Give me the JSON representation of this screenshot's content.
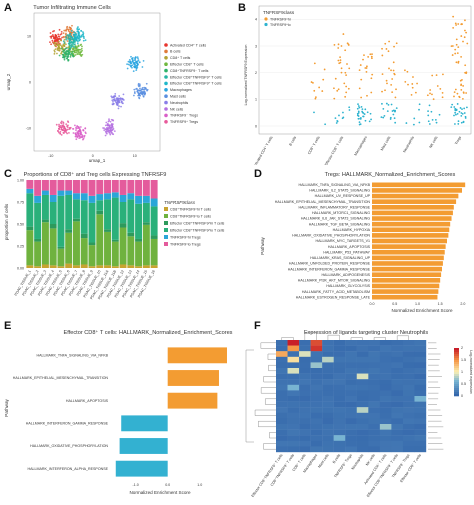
{
  "panels": {
    "A": {
      "label": "A"
    },
    "B": {
      "label": "B"
    },
    "C": {
      "label": "C"
    },
    "D": {
      "label": "D"
    },
    "E": {
      "label": "E"
    },
    "F": {
      "label": "F"
    }
  },
  "chart_data": [
    {
      "id": "A",
      "type": "scatter",
      "title": "Tumor Infiltrating Immune Cells",
      "xlabel": "umap_1",
      "ylabel": "umap_2",
      "xticks": [
        "-10",
        "0",
        "10"
      ],
      "yticks": [
        "10",
        "0",
        "-10"
      ],
      "xlim": [
        -14,
        16
      ],
      "ylim": [
        -15,
        15
      ],
      "legend_position": "right",
      "legend": [
        {
          "name": "Activated CD4⁺ T cells",
          "color": "#e8352d"
        },
        {
          "name": "B cells",
          "color": "#e07b39"
        },
        {
          "name": "CD8⁺ T cells",
          "color": "#b3a334"
        },
        {
          "name": "Effector CD8⁺ T cells",
          "color": "#70b83e"
        },
        {
          "name": "CD8⁺TNFRSF9⁻ T cells",
          "color": "#2fb268"
        },
        {
          "name": "Effector CD8⁺TNFRSF9⁺ T cells",
          "color": "#27b5a4"
        },
        {
          "name": "Effector CD8⁺TNFRSF9⁺ T cells",
          "color": "#1fb7c9"
        },
        {
          "name": "Macrophages",
          "color": "#2ba6e0"
        },
        {
          "name": "Mast cells",
          "color": "#5a8fe0"
        },
        {
          "name": "Neutrophils",
          "color": "#8a7ee8"
        },
        {
          "name": "NK cells",
          "color": "#b470e0"
        },
        {
          "name": "TNFRSF9⁻ Tregs",
          "color": "#d95fc8"
        },
        {
          "name": "TNFRSF9⁺ Tregs",
          "color": "#e85a9b"
        }
      ],
      "clusters": [
        {
          "x": -8.5,
          "y": 9.5,
          "color": "#e8352d"
        },
        {
          "x": -5.5,
          "y": 10.5,
          "color": "#e07b39"
        },
        {
          "x": -7.5,
          "y": 7.5,
          "color": "#b3a334"
        },
        {
          "x": -4,
          "y": 7,
          "color": "#70b83e"
        },
        {
          "x": -6,
          "y": 6,
          "color": "#2fb268"
        },
        {
          "x": -5,
          "y": 9,
          "color": "#27b5a4"
        },
        {
          "x": -3.5,
          "y": 10,
          "color": "#1fb7c9"
        },
        {
          "x": 10,
          "y": 4,
          "color": "#2ba6e0"
        },
        {
          "x": 11.5,
          "y": -2,
          "color": "#5a8fe0"
        },
        {
          "x": 6,
          "y": -4,
          "color": "#8a7ee8"
        },
        {
          "x": 4,
          "y": -10,
          "color": "#b470e0"
        },
        {
          "x": -3,
          "y": -11,
          "color": "#d95fc8"
        },
        {
          "x": -7,
          "y": -10,
          "color": "#e85a9b"
        }
      ]
    },
    {
      "id": "B",
      "type": "scatter",
      "ylabel": "Log-normalized TNFRSF9 Expression",
      "yticks": [
        "0",
        "1",
        "2",
        "3",
        "4"
      ],
      "ylim": [
        -0.3,
        4.5
      ],
      "legend_title": "TNFRSF9class",
      "legend_position": "top-left",
      "series": [
        {
          "name": "TNFRSF9^hi",
          "color": "#f39c32"
        },
        {
          "name": "TNFRSF9^lo",
          "color": "#2eb3cf"
        }
      ],
      "categories": [
        "Activated CD4⁺ T cells",
        "B cells",
        "CD8⁺ T cells",
        "Effector CD8⁺ T cells",
        "Macrophages",
        "Mast cells",
        "Neutrophils",
        "NK cells",
        "Tregs"
      ],
      "hi_range": [
        [
          0,
          0
        ],
        [
          0,
          0
        ],
        [
          1.0,
          2.5
        ],
        [
          1.0,
          3.5
        ],
        [
          1.0,
          2.8
        ],
        [
          1.0,
          3.3
        ],
        [
          1.0,
          2.2
        ],
        [
          1.0,
          2.4
        ],
        [
          1.0,
          4.1
        ]
      ],
      "hi_density": [
        0,
        0,
        10,
        30,
        20,
        24,
        10,
        12,
        48
      ],
      "lo_density": [
        0,
        0,
        2,
        10,
        30,
        20,
        6,
        10,
        30
      ]
    },
    {
      "id": "C",
      "type": "bar",
      "stacked": true,
      "title": "Proportions of CD8⁺ and Treg cells Expressing TNFRSF9",
      "ylabel": "proportion of cells",
      "yticks": [
        "0.00",
        "0.25",
        "0.50",
        "0.75",
        "1.00"
      ],
      "ylim": [
        0,
        1
      ],
      "legend_title": "TNFRSF9class",
      "legend_position": "right",
      "categories": [
        "PDAC_TISSUE_1",
        "PDAC_TISSUE_2",
        "PDAC_TISSUE_3",
        "PDAC_TISSUE_4",
        "PDAC_TISSUE_5",
        "PDAC_TISSUE_6",
        "PDAC_TISSUE_7",
        "PDAC_TISSUE_8",
        "PDAC_TISSUE_9",
        "PDAC_TISSUE_10",
        "PDAC_TISSUE_11A",
        "PDAC_TISSUE_11B",
        "PDAC_TISSUE_12",
        "PDAC_TISSUE_13",
        "PDAC_TISSUE_14",
        "PDAC_TISSUE_15",
        "PDAC_TISSUE_16"
      ],
      "series": [
        {
          "name": "CD8⁺TNFRSF9^hi T cells",
          "color": "#c8a330",
          "values": [
            0.03,
            0.02,
            0.04,
            0.03,
            0.02,
            0.05,
            0.03,
            0.04,
            0.02,
            0.03,
            0.03,
            0.02,
            0.04,
            0.03,
            0.02,
            0.03,
            0.03
          ]
        },
        {
          "name": "CD8⁺TNFRSF9^lo T cells",
          "color": "#6fb23e",
          "values": [
            0.4,
            0.28,
            0.48,
            0.42,
            0.2,
            0.35,
            0.5,
            0.3,
            0.24,
            0.58,
            0.38,
            0.28,
            0.42,
            0.33,
            0.28,
            0.46,
            0.3
          ]
        },
        {
          "name": "Effector CD8⁺TNFRSF9^hi T cells",
          "color": "#2d9a5c",
          "values": [
            0.04,
            0.03,
            0.03,
            0.05,
            0.02,
            0.04,
            0.03,
            0.05,
            0.03,
            0.04,
            0.03,
            0.02,
            0.05,
            0.04,
            0.03,
            0.03,
            0.04
          ]
        },
        {
          "name": "Effector CD8⁺TNFRSF9^lo T cells",
          "color": "#2ab07a",
          "values": [
            0.38,
            0.41,
            0.28,
            0.25,
            0.58,
            0.39,
            0.22,
            0.38,
            0.45,
            0.12,
            0.34,
            0.48,
            0.24,
            0.38,
            0.4,
            0.22,
            0.33
          ]
        },
        {
          "name": "TNFRSF9^hi Tregs",
          "color": "#2ba6d8",
          "values": [
            0.05,
            0.08,
            0.05,
            0.08,
            0.06,
            0.05,
            0.07,
            0.08,
            0.08,
            0.07,
            0.07,
            0.06,
            0.08,
            0.07,
            0.09,
            0.08,
            0.09
          ]
        },
        {
          "name": "TNFRSF9^lo Tregs",
          "color": "#e45b9c",
          "values": [
            0.1,
            0.18,
            0.12,
            0.17,
            0.12,
            0.12,
            0.15,
            0.15,
            0.18,
            0.16,
            0.15,
            0.14,
            0.17,
            0.15,
            0.18,
            0.18,
            0.21
          ]
        }
      ]
    },
    {
      "id": "D",
      "type": "bar",
      "orientation": "horizontal",
      "title": "Tregs: HALLMARK_Normalized_Enrichment_Scores",
      "xlabel": "Normalized Enrichment Score",
      "ylabel": "Pathway",
      "xticks": [
        "0.0",
        "0.5",
        "1.0",
        "1.5",
        "2.0"
      ],
      "xlim": [
        0,
        2.2
      ],
      "categories": [
        "HALLMARK_TNFA_SIGNALING_VIA_NFKB",
        "HALLMARK_IL2_STAT5_SIGNALING",
        "HALLMARK_UV_RESPONSE_UP",
        "HALLMARK_EPITHELIAL_MESENCHYMAL_TRANSITION",
        "HALLMARK_INFLAMMATORY_RESPONSE",
        "HALLMARK_MTORC1_SIGNALING",
        "HALLMARK_IL6_JAK_STAT3_SIGNALING",
        "HALLMARK_TGF_BETA_SIGNALING",
        "HALLMARK_HYPOXIA",
        "HALLMARK_OXIDATIVE_PHOSPHORYLATION",
        "HALLMARK_MYC_TARGETS_V1",
        "HALLMARK_APOPTOSIS",
        "HALLMARK_P53_PATHWAY",
        "HALLMARK_KRAS_SIGNALING_UP",
        "HALLMARK_UNFOLDED_PROTEIN_RESPONSE",
        "HALLMARK_INTERFERON_GAMMA_RESPONSE",
        "HALLMARK_ADIPOGENESIS",
        "HALLMARK_PI3K_AKT_MTOR_SIGNALING",
        "HALLMARK_GLYCOLYSIS",
        "HALLMARK_FATTY_ACID_METABOLISM",
        "HALLMARK_ESTROGEN_RESPONSE_LATE"
      ],
      "values": [
        2.05,
        1.98,
        1.9,
        1.85,
        1.8,
        1.78,
        1.75,
        1.72,
        1.7,
        1.68,
        1.65,
        1.62,
        1.6,
        1.58,
        1.56,
        1.54,
        1.52,
        1.5,
        1.48,
        1.46,
        1.44
      ],
      "color": "#f39c32"
    },
    {
      "id": "E",
      "type": "bar",
      "orientation": "horizontal",
      "title": "Effector CD8⁺ T cells: HALLMARK_Normalized_Enrichment_Scores",
      "xlabel": "Normalized Enrichment Score",
      "ylabel": "Pathway",
      "xticks": [
        "-1.0",
        "0.0",
        "1.0"
      ],
      "xlim": [
        -1.8,
        2.1
      ],
      "categories": [
        "HALLMARK_TNFA_SIGNALING_VIA_NFKB",
        "HALLMARK_EPITHELIAL_MESENCHYMAL_TRANSITION",
        "HALLMARK_APOPTOSIS",
        "HALLMARK_INTERFERON_GAMMA_RESPONSE",
        "HALLMARK_OXIDATIVE_PHOSPHORYLATION",
        "HALLMARK_INTERFERON_ALPHA_RESPONSE"
      ],
      "values": [
        1.85,
        1.6,
        1.55,
        -1.45,
        -1.5,
        -1.62
      ],
      "colors": {
        "positive": "#f39c32",
        "negative": "#33b1d1"
      }
    },
    {
      "id": "F",
      "type": "heatmap",
      "title": "Expression of ligands targeting cluster Neutrophils",
      "legend_title": "Log-normalized expression",
      "legend_ticks": [
        "2",
        "1.5",
        "1",
        "0.5",
        "0"
      ],
      "columns": [
        "Effector CD8⁺TNFRSF9⁺ T cells",
        "CD8⁺TNFRSF9⁺ T cells",
        "CD8⁺ T cells",
        "Macrophages",
        "Mast cells",
        "B cells",
        "TNFRSF9⁺ Tregs",
        "Neutrophils",
        "NK cells",
        "Activated CD4⁺ T cells",
        "Effector CD8⁺TNFRSF9⁻ T cells",
        "TNFRSF9⁻ Tregs",
        "Effector CD8⁺ T cells"
      ],
      "rows": 20,
      "hot_cells": [
        {
          "r": 0,
          "c": 1,
          "v": 2.0
        },
        {
          "r": 0,
          "c": 3,
          "v": 1.8
        },
        {
          "r": 1,
          "c": 1,
          "v": 1.5
        },
        {
          "r": 1,
          "c": 3,
          "v": 1.9
        },
        {
          "r": 2,
          "c": 0,
          "v": 1.4
        },
        {
          "r": 2,
          "c": 2,
          "v": 0.9
        },
        {
          "r": 3,
          "c": 1,
          "v": 1.1
        },
        {
          "r": 3,
          "c": 4,
          "v": 0.8
        },
        {
          "r": 4,
          "c": 3,
          "v": 0.7
        },
        {
          "r": 5,
          "c": 1,
          "v": 0.9
        },
        {
          "r": 6,
          "c": 7,
          "v": 0.9
        },
        {
          "r": 8,
          "c": 1,
          "v": 0.6
        },
        {
          "r": 10,
          "c": 12,
          "v": 0.6
        },
        {
          "r": 12,
          "c": 7,
          "v": 0.8
        },
        {
          "r": 15,
          "c": 9,
          "v": 0.7
        },
        {
          "r": 17,
          "c": 5,
          "v": 0.6
        }
      ]
    }
  ]
}
